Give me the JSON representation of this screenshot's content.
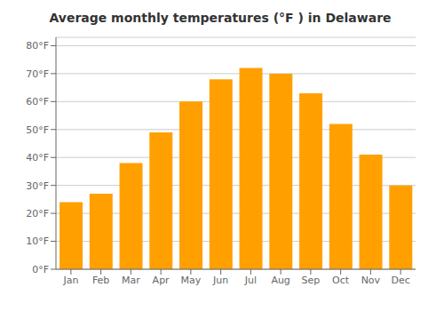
{
  "chart_data": {
    "type": "bar",
    "title": "Average monthly temperatures (°F ) in Delaware",
    "categories": [
      "Jan",
      "Feb",
      "Mar",
      "Apr",
      "May",
      "Jun",
      "Jul",
      "Aug",
      "Sep",
      "Oct",
      "Nov",
      "Dec"
    ],
    "values": [
      24,
      27,
      38,
      49,
      60,
      68,
      72,
      70,
      63,
      52,
      41,
      30
    ],
    "color": "#FFA000",
    "ylim": [
      0,
      83
    ],
    "yticks": [
      {
        "value": 0,
        "label": "0°F"
      },
      {
        "value": 10,
        "label": "10°F"
      },
      {
        "value": 20,
        "label": "20°F"
      },
      {
        "value": 30,
        "label": "30°F"
      },
      {
        "value": 40,
        "label": "40°F"
      },
      {
        "value": 50,
        "label": "50°F"
      },
      {
        "value": 60,
        "label": "60°F"
      },
      {
        "value": 70,
        "label": "70°F"
      },
      {
        "value": 80,
        "label": "80°F"
      }
    ],
    "grid": true
  }
}
